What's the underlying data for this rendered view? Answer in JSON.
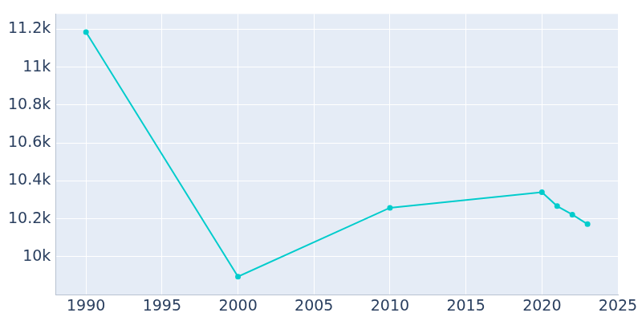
{
  "chart_data": {
    "type": "line",
    "x": [
      1990,
      2000,
      2010,
      2020,
      2021,
      2022,
      2023
    ],
    "values": [
      11184,
      9895,
      10258,
      10340,
      10267,
      10222,
      10172
    ],
    "color": "#00cccc",
    "marker": "circle",
    "xlim": [
      1988,
      2025
    ],
    "xticks": [
      1990,
      1995,
      2000,
      2005,
      2010,
      2015,
      2020,
      2025
    ],
    "ylim": [
      9800,
      11280
    ],
    "yticks": [
      {
        "value": 10000,
        "label": "10k"
      },
      {
        "value": 10200,
        "label": "10.2k"
      },
      {
        "value": 10400,
        "label": "10.4k"
      },
      {
        "value": 10600,
        "label": "10.6k"
      },
      {
        "value": 10800,
        "label": "10.8k"
      },
      {
        "value": 11000,
        "label": "11k"
      },
      {
        "value": 11200,
        "label": "11.2k"
      }
    ],
    "grid": true
  }
}
